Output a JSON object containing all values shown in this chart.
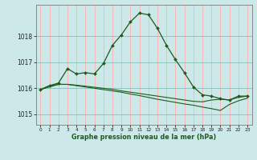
{
  "title": "Graphe pression niveau de la mer (hPa)",
  "background_color": "#cce8e8",
  "grid_color_major": "#ffaaaa",
  "grid_color_minor": "#aacccc",
  "line_color": "#1a5c1a",
  "marker_color": "#1a5c1a",
  "xlim": [
    -0.5,
    23.5
  ],
  "ylim": [
    1014.6,
    1019.2
  ],
  "yticks": [
    1015,
    1016,
    1017,
    1018
  ],
  "xticks": [
    0,
    1,
    2,
    3,
    4,
    5,
    6,
    7,
    8,
    9,
    10,
    11,
    12,
    13,
    14,
    15,
    16,
    17,
    18,
    19,
    20,
    21,
    22,
    23
  ],
  "series1_x": [
    0,
    1,
    2,
    3,
    4,
    5,
    6,
    7,
    8,
    9,
    10,
    11,
    12,
    13,
    14,
    15,
    16,
    17,
    18,
    19,
    20,
    21,
    22,
    23
  ],
  "series1_y": [
    1015.95,
    1016.1,
    1016.2,
    1016.75,
    1016.55,
    1016.6,
    1016.55,
    1016.95,
    1017.65,
    1018.05,
    1018.55,
    1018.88,
    1018.82,
    1018.3,
    1017.65,
    1017.1,
    1016.6,
    1016.05,
    1015.75,
    1015.7,
    1015.6,
    1015.55,
    1015.7,
    1015.7
  ],
  "series2_x": [
    0,
    1,
    2,
    3,
    4,
    5,
    6,
    7,
    8,
    9,
    10,
    11,
    12,
    13,
    14,
    15,
    16,
    17,
    18,
    19,
    20,
    21,
    22,
    23
  ],
  "series2_y": [
    1015.95,
    1016.1,
    1016.15,
    1016.15,
    1016.12,
    1016.08,
    1016.04,
    1016.0,
    1015.96,
    1015.9,
    1015.85,
    1015.8,
    1015.75,
    1015.7,
    1015.65,
    1015.6,
    1015.55,
    1015.5,
    1015.48,
    1015.55,
    1015.58,
    1015.55,
    1015.65,
    1015.7
  ],
  "series3_x": [
    0,
    1,
    2,
    3,
    4,
    5,
    6,
    7,
    8,
    9,
    10,
    11,
    12,
    13,
    14,
    15,
    16,
    17,
    18,
    19,
    20,
    21,
    22,
    23
  ],
  "series3_y": [
    1015.95,
    1016.05,
    1016.15,
    1016.15,
    1016.1,
    1016.05,
    1016.0,
    1015.95,
    1015.9,
    1015.85,
    1015.78,
    1015.72,
    1015.65,
    1015.58,
    1015.52,
    1015.46,
    1015.4,
    1015.35,
    1015.28,
    1015.22,
    1015.15,
    1015.38,
    1015.52,
    1015.62
  ]
}
